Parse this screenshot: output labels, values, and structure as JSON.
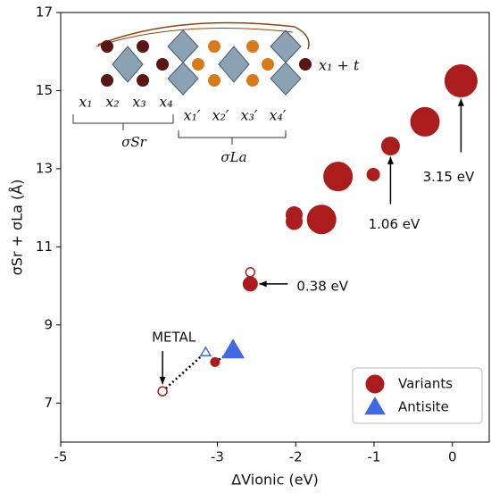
{
  "chart_data": {
    "type": "scatter",
    "xlabel": "ΔVionic (eV)",
    "ylabel": "σSr + σLa (Å)",
    "xlim": [
      -5,
      0.47
    ],
    "ylim": [
      6,
      17
    ],
    "xticks": [
      -5,
      -3,
      -2,
      -1,
      0
    ],
    "yticks": [
      7,
      9,
      11,
      13,
      15,
      17
    ],
    "legend": "lower right",
    "series": [
      {
        "name": "Variants",
        "color": "#ab1d1d",
        "marker": "circle",
        "x": [
          0.11,
          -0.35,
          -0.79,
          -1.01,
          -1.46,
          -2.02,
          -2.02,
          -1.67,
          -2.58,
          -3.03,
          -2.58,
          -3.7
        ],
        "values": [
          15.25,
          14.2,
          13.58,
          12.85,
          12.8,
          11.82,
          11.65,
          11.7,
          10.05,
          8.05,
          10.35,
          7.3
        ],
        "sizes": [
          18,
          16,
          10,
          7,
          16,
          9,
          9,
          16,
          8,
          5,
          5,
          5
        ],
        "filled": [
          true,
          true,
          true,
          true,
          true,
          true,
          true,
          true,
          true,
          true,
          false,
          false
        ]
      },
      {
        "name": "Antisite",
        "color": "#4169e1",
        "marker": "triangle",
        "x": [
          -2.8,
          -3.15
        ],
        "values": [
          8.35,
          8.3
        ],
        "sizes": [
          11,
          5
        ],
        "filled": [
          true,
          false
        ]
      }
    ],
    "annotations": [
      "0.38 eV",
      "1.06 eV",
      "3.15 eV",
      "METAL"
    ],
    "inset": {
      "sites": [
        "x₁",
        "x₂",
        "x₃",
        "x₄",
        "x₁′",
        "x₂′",
        "x₃′",
        "x₄′"
      ],
      "groups": [
        "σSr",
        "σLa"
      ],
      "shift": "x₁ + t"
    }
  }
}
